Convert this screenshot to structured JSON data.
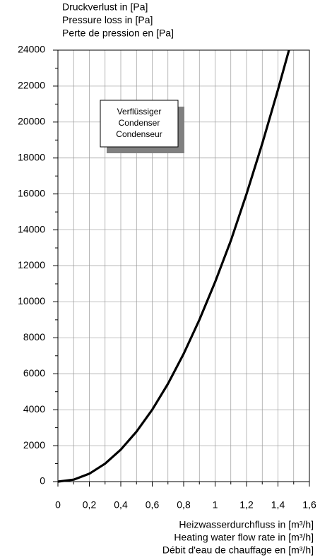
{
  "chart_data": {
    "type": "line",
    "y_axis_label": [
      "Druckverlust in [Pa]",
      "Pressure loss in [Pa]",
      "Perte de pression en [Pa]"
    ],
    "x_axis_label": [
      "Heizwasserdurchfluss in [m³/h]",
      "Heating water flow rate in [m³/h]",
      "Débit d'eau de chauffage en [m³/h]"
    ],
    "annotation": [
      "Verflüssiger",
      "Condenser",
      "Condenseur"
    ],
    "x": [
      0,
      0.1,
      0.2,
      0.3,
      0.4,
      0.5,
      0.6,
      0.7,
      0.8,
      0.9,
      1.0,
      1.1,
      1.2,
      1.3,
      1.4,
      1.47
    ],
    "series": [
      {
        "color": "#000000",
        "values": [
          0,
          110,
          440,
          1000,
          1780,
          2780,
          4000,
          5440,
          7110,
          9000,
          11100,
          13400,
          16000,
          18800,
          21800,
          24000
        ]
      }
    ],
    "xlim": [
      0,
      1.6
    ],
    "xticks": [
      0,
      {
        "value": 0.2,
        "label": "0,2"
      },
      {
        "value": 0.4,
        "label": "0,4"
      },
      {
        "value": 0.6,
        "label": "0,6"
      },
      {
        "value": 0.8,
        "label": "0,8"
      },
      1,
      {
        "value": 1.2,
        "label": "1,2"
      },
      {
        "value": 1.4,
        "label": "1,4"
      },
      {
        "value": 1.6,
        "label": "1,6"
      }
    ],
    "xminor_ticks": [
      0.1,
      0.3,
      0.5,
      0.7,
      0.9,
      1.1,
      1.3,
      1.5
    ],
    "ylim": [
      0,
      24000
    ],
    "yticks": [
      0,
      2000,
      4000,
      6000,
      8000,
      10000,
      12000,
      14000,
      16000,
      18000,
      20000,
      22000,
      24000
    ],
    "yminor_ticks": [
      1000,
      3000,
      5000,
      7000,
      9000,
      11000,
      13000,
      15000,
      17000,
      19000,
      21000,
      23000
    ],
    "grid": true
  }
}
